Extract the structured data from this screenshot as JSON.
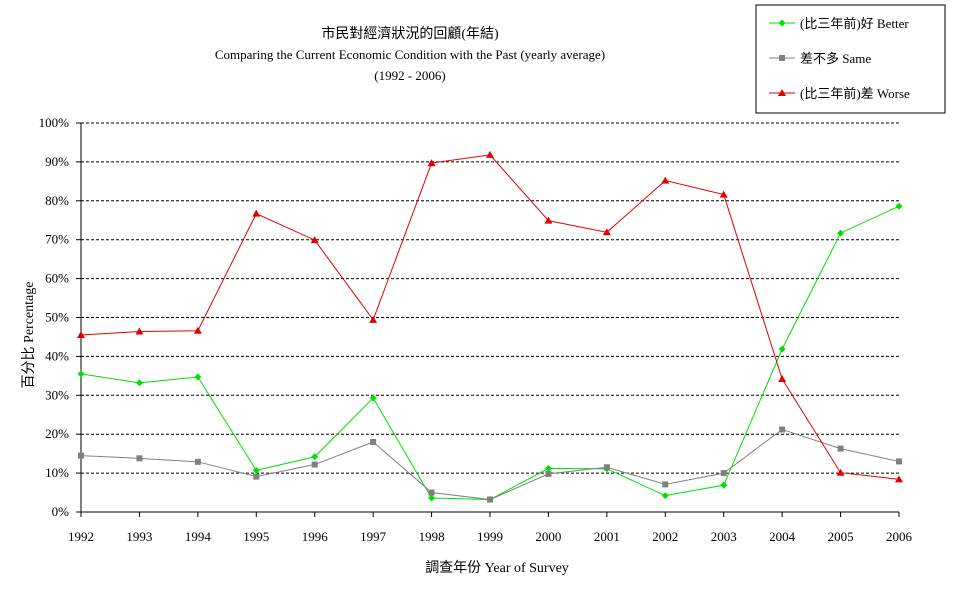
{
  "chart_data": {
    "type": "line",
    "title": "市民對經濟狀況的回顧(年結)",
    "subtitle": "Comparing the Current Economic Condition with the Past  (yearly average)",
    "period": "(1992 - 2006)",
    "xlabel": "調查年份 Year of Survey",
    "ylabel": "百分比 Percentage",
    "ylim": [
      0,
      100
    ],
    "y_ticks": [
      "0%",
      "10%",
      "20%",
      "30%",
      "40%",
      "50%",
      "60%",
      "70%",
      "80%",
      "90%",
      "100%"
    ],
    "grid": true,
    "legend_position": "top-right",
    "categories": [
      "1992",
      "1993",
      "1994",
      "1995",
      "1996",
      "1997",
      "1998",
      "1999",
      "2000",
      "2001",
      "2002",
      "2003",
      "2004",
      "2005",
      "2006"
    ],
    "series": [
      {
        "name": "(比三年前)好 Better",
        "color": "#00e000",
        "marker": "diamond",
        "values": [
          35.5,
          33.2,
          34.7,
          10.7,
          14.2,
          29.3,
          3.6,
          3.2,
          11.2,
          11.1,
          4.2,
          6.9,
          41.9,
          71.7,
          78.6
        ]
      },
      {
        "name": "差不多 Same",
        "color": "#808080",
        "marker": "square",
        "values": [
          14.5,
          13.8,
          12.9,
          9.1,
          12.2,
          18.0,
          5.0,
          3.2,
          9.8,
          11.5,
          7.1,
          10.0,
          21.2,
          16.3,
          13.0
        ]
      },
      {
        "name": "(比三年前)差 Worse",
        "color": "#e00000",
        "marker": "triangle",
        "values": [
          45.5,
          46.4,
          46.6,
          76.7,
          69.9,
          49.4,
          89.7,
          91.8,
          74.9,
          71.9,
          85.2,
          81.6,
          34.2,
          10.1,
          8.4
        ]
      }
    ]
  }
}
